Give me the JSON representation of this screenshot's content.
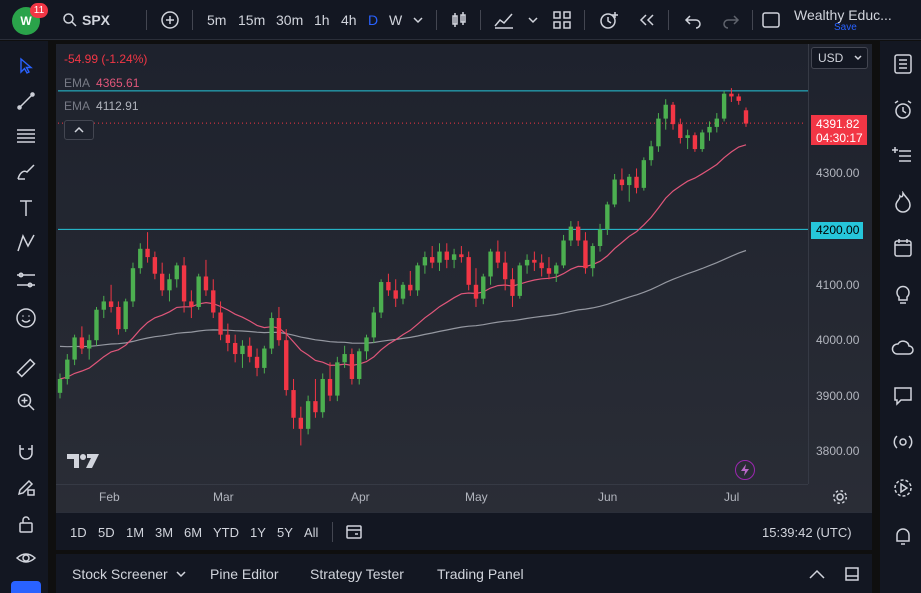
{
  "app": {
    "badge_count": "11",
    "logo_text": "W",
    "symbol": "SPX",
    "intervals": [
      "5m",
      "15m",
      "30m",
      "1h",
      "4h",
      "D",
      "W"
    ],
    "active_interval": "D",
    "account_name": "Wealthy Educ...",
    "save_label": "Save"
  },
  "legend": {
    "change": "-54.99 (-1.24%)",
    "ema1_label": "EMA",
    "ema1_value": "4365.61",
    "ema2_label": "EMA",
    "ema2_value": "4112.91"
  },
  "price_axis": {
    "currency": "USD",
    "current_price": "4391.82",
    "countdown": "04:30:17",
    "level_label": "4200.00",
    "ticks": [
      "4300.00",
      "4100.00",
      "4000.00",
      "3900.00",
      "3800.00"
    ]
  },
  "time_axis": {
    "labels": [
      "Feb",
      "Mar",
      "Apr",
      "May",
      "Jun",
      "Jul"
    ]
  },
  "timeframes": {
    "ranges": [
      "1D",
      "5D",
      "1M",
      "3M",
      "6M",
      "YTD",
      "1Y",
      "5Y",
      "All"
    ],
    "clock": "15:39:42 (UTC)"
  },
  "panels": {
    "stock_screener": "Stock Screener",
    "pine_editor": "Pine Editor",
    "strategy_tester": "Strategy Tester",
    "trading_panel": "Trading Panel"
  },
  "colors": {
    "up": "#26a69a",
    "up_bar": "#4caf50",
    "down": "#f23645",
    "ema_fast": "#e0567a",
    "ema_slow": "#9598a1",
    "hline": "#26c6da",
    "accent": "#2962ff"
  },
  "chart_data": {
    "type": "candlestick",
    "ylim": [
      3750,
      4470
    ],
    "hlines": [
      4200,
      4450
    ],
    "current_price": 4391.82,
    "candles": [
      [
        3905,
        3940,
        3895,
        3930
      ],
      [
        3930,
        3975,
        3920,
        3965
      ],
      [
        3965,
        4010,
        3955,
        4005
      ],
      [
        4005,
        4025,
        3975,
        3985
      ],
      [
        3985,
        4010,
        3965,
        4000
      ],
      [
        4000,
        4060,
        3990,
        4055
      ],
      [
        4055,
        4080,
        4040,
        4070
      ],
      [
        4070,
        4100,
        4050,
        4060
      ],
      [
        4060,
        4070,
        4010,
        4020
      ],
      [
        4020,
        4075,
        4015,
        4070
      ],
      [
        4070,
        4140,
        4060,
        4130
      ],
      [
        4130,
        4175,
        4120,
        4165
      ],
      [
        4165,
        4195,
        4140,
        4150
      ],
      [
        4150,
        4160,
        4110,
        4120
      ],
      [
        4120,
        4140,
        4080,
        4090
      ],
      [
        4090,
        4120,
        4070,
        4110
      ],
      [
        4110,
        4140,
        4095,
        4135
      ],
      [
        4135,
        4150,
        4050,
        4070
      ],
      [
        4070,
        4090,
        4040,
        4060
      ],
      [
        4060,
        4120,
        4055,
        4115
      ],
      [
        4115,
        4145,
        4080,
        4090
      ],
      [
        4090,
        4110,
        4040,
        4050
      ],
      [
        4050,
        4070,
        4000,
        4010
      ],
      [
        4010,
        4030,
        3980,
        3995
      ],
      [
        3995,
        4010,
        3960,
        3975
      ],
      [
        3975,
        4000,
        3950,
        3990
      ],
      [
        3990,
        4005,
        3960,
        3970
      ],
      [
        3970,
        3985,
        3935,
        3950
      ],
      [
        3950,
        3990,
        3940,
        3985
      ],
      [
        3985,
        4050,
        3975,
        4040
      ],
      [
        4040,
        4060,
        3990,
        4000
      ],
      [
        4000,
        4020,
        3900,
        3910
      ],
      [
        3910,
        3930,
        3840,
        3860
      ],
      [
        3860,
        3880,
        3810,
        3840
      ],
      [
        3840,
        3900,
        3830,
        3890
      ],
      [
        3890,
        3930,
        3860,
        3870
      ],
      [
        3870,
        3940,
        3860,
        3930
      ],
      [
        3930,
        3960,
        3890,
        3900
      ],
      [
        3900,
        3970,
        3890,
        3960
      ],
      [
        3960,
        3990,
        3950,
        3975
      ],
      [
        3975,
        3985,
        3920,
        3930
      ],
      [
        3930,
        3985,
        3920,
        3980
      ],
      [
        3980,
        4010,
        3965,
        4005
      ],
      [
        4005,
        4060,
        3995,
        4050
      ],
      [
        4050,
        4110,
        4040,
        4105
      ],
      [
        4105,
        4120,
        4080,
        4090
      ],
      [
        4090,
        4110,
        4060,
        4075
      ],
      [
        4075,
        4105,
        4065,
        4100
      ],
      [
        4100,
        4125,
        4080,
        4090
      ],
      [
        4090,
        4140,
        4080,
        4135
      ],
      [
        4135,
        4160,
        4120,
        4150
      ],
      [
        4150,
        4170,
        4130,
        4140
      ],
      [
        4140,
        4175,
        4125,
        4160
      ],
      [
        4160,
        4175,
        4130,
        4145
      ],
      [
        4145,
        4165,
        4130,
        4155
      ],
      [
        4155,
        4170,
        4140,
        4150
      ],
      [
        4150,
        4160,
        4090,
        4100
      ],
      [
        4100,
        4130,
        4060,
        4075
      ],
      [
        4075,
        4120,
        4065,
        4115
      ],
      [
        4115,
        4165,
        4100,
        4160
      ],
      [
        4160,
        4180,
        4130,
        4140
      ],
      [
        4140,
        4160,
        4090,
        4110
      ],
      [
        4110,
        4130,
        4060,
        4080
      ],
      [
        4080,
        4140,
        4075,
        4135
      ],
      [
        4135,
        4155,
        4120,
        4145
      ],
      [
        4145,
        4160,
        4125,
        4140
      ],
      [
        4140,
        4155,
        4115,
        4130
      ],
      [
        4130,
        4150,
        4110,
        4120
      ],
      [
        4120,
        4140,
        4105,
        4135
      ],
      [
        4135,
        4190,
        4130,
        4180
      ],
      [
        4180,
        4215,
        4170,
        4205
      ],
      [
        4205,
        4215,
        4170,
        4180
      ],
      [
        4180,
        4195,
        4120,
        4130
      ],
      [
        4130,
        4175,
        4115,
        4170
      ],
      [
        4170,
        4210,
        4160,
        4200
      ],
      [
        4200,
        4250,
        4190,
        4245
      ],
      [
        4245,
        4300,
        4240,
        4290
      ],
      [
        4290,
        4310,
        4270,
        4280
      ],
      [
        4280,
        4300,
        4250,
        4295
      ],
      [
        4295,
        4310,
        4265,
        4275
      ],
      [
        4275,
        4330,
        4270,
        4325
      ],
      [
        4325,
        4360,
        4315,
        4350
      ],
      [
        4350,
        4410,
        4340,
        4400
      ],
      [
        4400,
        4435,
        4380,
        4425
      ],
      [
        4425,
        4430,
        4380,
        4390
      ],
      [
        4390,
        4400,
        4355,
        4365
      ],
      [
        4365,
        4380,
        4345,
        4370
      ],
      [
        4370,
        4375,
        4340,
        4345
      ],
      [
        4345,
        4380,
        4340,
        4375
      ],
      [
        4375,
        4395,
        4360,
        4385
      ],
      [
        4385,
        4410,
        4375,
        4400
      ],
      [
        4400,
        4450,
        4395,
        4445
      ],
      [
        4445,
        4455,
        4430,
        4440
      ],
      [
        4440,
        4445,
        4425,
        4432
      ],
      [
        4415,
        4420,
        4385,
        4391
      ]
    ],
    "ema_fast_label": "EMA 4365.61",
    "ema_slow_label": "EMA 4112.91"
  }
}
